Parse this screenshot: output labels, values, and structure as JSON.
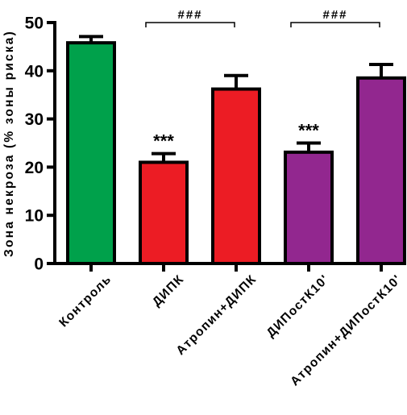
{
  "chart_data": {
    "type": "bar",
    "ylabel": "Зона некроза (% зоны риска)",
    "ylim": [
      0,
      50
    ],
    "yticks": [
      0,
      10,
      20,
      30,
      40,
      50
    ],
    "categories": [
      "Контроль",
      "ДИПК",
      "Атропин+ДИПК",
      "ДИПостК10'",
      "Атропин+ДИПостК10'"
    ],
    "values": [
      45.8,
      21.0,
      36.2,
      23.1,
      38.5
    ],
    "errors": [
      1.3,
      1.8,
      2.8,
      1.9,
      2.8
    ],
    "colors": [
      "#00a14b",
      "#ec1c24",
      "#ec1c24",
      "#92278f",
      "#92278f"
    ],
    "bar_annotations": [
      {
        "category": 1,
        "text": "***"
      },
      {
        "category": 3,
        "text": "***"
      }
    ],
    "brackets": [
      {
        "from": 1,
        "to": 2,
        "text": "###"
      },
      {
        "from": 3,
        "to": 4,
        "text": "###"
      }
    ]
  }
}
